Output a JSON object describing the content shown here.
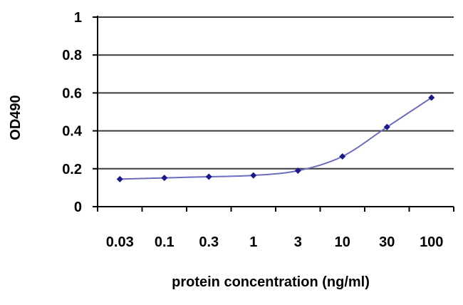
{
  "chart_data": {
    "type": "line",
    "title": "",
    "xlabel": "protein concentration (ng/ml)",
    "ylabel": "OD490",
    "categories": [
      "0.03",
      "0.1",
      "0.3",
      "1",
      "3",
      "10",
      "30",
      "100"
    ],
    "series": [
      {
        "name": "OD490",
        "values": [
          0.145,
          0.152,
          0.158,
          0.165,
          0.19,
          0.265,
          0.42,
          0.575
        ]
      }
    ],
    "ylim": [
      0,
      1
    ],
    "yticks": [
      "0",
      "0.2",
      "0.4",
      "0.6",
      "0.8",
      "1"
    ],
    "grid": true,
    "legend": "none",
    "colors": {
      "line": "#6d6dbf",
      "marker": "#1a1a8c",
      "grid": "#3a3a3a",
      "axis": "#000000"
    }
  }
}
